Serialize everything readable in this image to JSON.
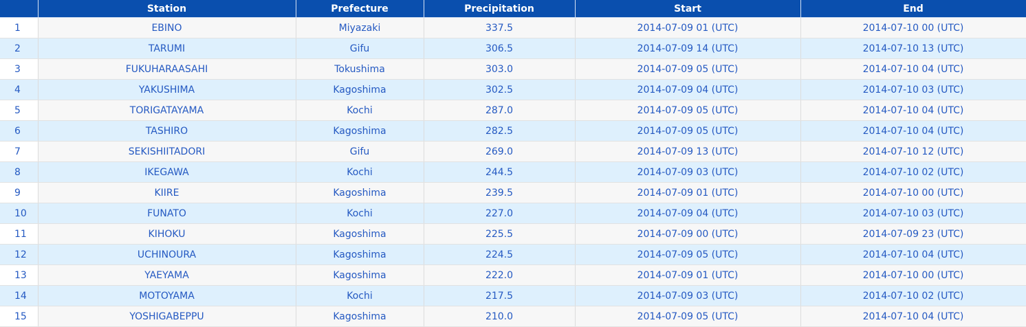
{
  "table": {
    "headers": {
      "rank": "",
      "station": "Station",
      "prefecture": "Prefecture",
      "precipitation": "Precipitation",
      "start": "Start",
      "end": "End"
    },
    "rows": [
      {
        "rank": "1",
        "station": "EBINO",
        "prefecture": "Miyazaki",
        "precipitation": "337.5",
        "start": "2014-07-09 01 (UTC)",
        "end": "2014-07-10 00 (UTC)"
      },
      {
        "rank": "2",
        "station": "TARUMI",
        "prefecture": "Gifu",
        "precipitation": "306.5",
        "start": "2014-07-09 14 (UTC)",
        "end": "2014-07-10 13 (UTC)"
      },
      {
        "rank": "3",
        "station": "FUKUHARAASAHI",
        "prefecture": "Tokushima",
        "precipitation": "303.0",
        "start": "2014-07-09 05 (UTC)",
        "end": "2014-07-10 04 (UTC)"
      },
      {
        "rank": "4",
        "station": "YAKUSHIMA",
        "prefecture": "Kagoshima",
        "precipitation": "302.5",
        "start": "2014-07-09 04 (UTC)",
        "end": "2014-07-10 03 (UTC)"
      },
      {
        "rank": "5",
        "station": "TORIGATAYAMA",
        "prefecture": "Kochi",
        "precipitation": "287.0",
        "start": "2014-07-09 05 (UTC)",
        "end": "2014-07-10 04 (UTC)"
      },
      {
        "rank": "6",
        "station": "TASHIRO",
        "prefecture": "Kagoshima",
        "precipitation": "282.5",
        "start": "2014-07-09 05 (UTC)",
        "end": "2014-07-10 04 (UTC)"
      },
      {
        "rank": "7",
        "station": "SEKISHIITADORI",
        "prefecture": "Gifu",
        "precipitation": "269.0",
        "start": "2014-07-09 13 (UTC)",
        "end": "2014-07-10 12 (UTC)"
      },
      {
        "rank": "8",
        "station": "IKEGAWA",
        "prefecture": "Kochi",
        "precipitation": "244.5",
        "start": "2014-07-09 03 (UTC)",
        "end": "2014-07-10 02 (UTC)"
      },
      {
        "rank": "9",
        "station": "KIIRE",
        "prefecture": "Kagoshima",
        "precipitation": "239.5",
        "start": "2014-07-09 01 (UTC)",
        "end": "2014-07-10 00 (UTC)"
      },
      {
        "rank": "10",
        "station": "FUNATO",
        "prefecture": "Kochi",
        "precipitation": "227.0",
        "start": "2014-07-09 04 (UTC)",
        "end": "2014-07-10 03 (UTC)"
      },
      {
        "rank": "11",
        "station": "KIHOKU",
        "prefecture": "Kagoshima",
        "precipitation": "225.5",
        "start": "2014-07-09 00 (UTC)",
        "end": "2014-07-09 23 (UTC)"
      },
      {
        "rank": "12",
        "station": "UCHINOURA",
        "prefecture": "Kagoshima",
        "precipitation": "224.5",
        "start": "2014-07-09 05 (UTC)",
        "end": "2014-07-10 04 (UTC)"
      },
      {
        "rank": "13",
        "station": "YAEYAMA",
        "prefecture": "Kagoshima",
        "precipitation": "222.0",
        "start": "2014-07-09 01 (UTC)",
        "end": "2014-07-10 00 (UTC)"
      },
      {
        "rank": "14",
        "station": "MOTOYAMA",
        "prefecture": "Kochi",
        "precipitation": "217.5",
        "start": "2014-07-09 03 (UTC)",
        "end": "2014-07-10 02 (UTC)"
      },
      {
        "rank": "15",
        "station": "YOSHIGABEPPU",
        "prefecture": "Kagoshima",
        "precipitation": "210.0",
        "start": "2014-07-09 05 (UTC)",
        "end": "2014-07-10 04 (UTC)"
      }
    ]
  }
}
